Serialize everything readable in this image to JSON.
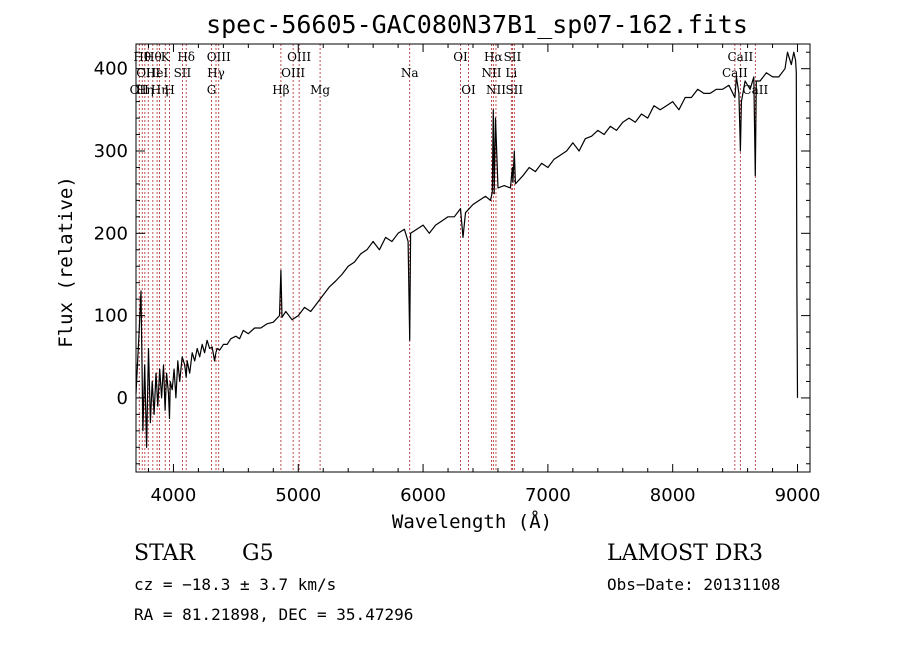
{
  "chart_data": {
    "type": "line",
    "title": "spec-56605-GAC080N37B1_sp07-162.fits",
    "xlabel": "Wavelength (Å)",
    "ylabel": "Flux (relative)",
    "xlim": [
      3700,
      9100
    ],
    "ylim": [
      -90,
      430
    ],
    "xticks": [
      {
        "v": 4000,
        "label": "4000"
      },
      {
        "v": 5000,
        "label": "5000"
      },
      {
        "v": 6000,
        "label": "6000"
      },
      {
        "v": 7000,
        "label": "7000"
      },
      {
        "v": 8000,
        "label": "8000"
      },
      {
        "v": 9000,
        "label": "9000"
      }
    ],
    "yticks": [
      {
        "v": 0,
        "label": "0"
      },
      {
        "v": 100,
        "label": "100"
      },
      {
        "v": 200,
        "label": "200"
      },
      {
        "v": 300,
        "label": "300"
      },
      {
        "v": 400,
        "label": "400"
      }
    ],
    "line_color": "#000000",
    "marker_color": "#b22222",
    "series": [
      {
        "name": "flux",
        "x": [
          3700,
          3725,
          3740,
          3755,
          3770,
          3785,
          3800,
          3815,
          3830,
          3845,
          3860,
          3875,
          3890,
          3905,
          3920,
          3933,
          3945,
          3960,
          3968,
          3975,
          3990,
          4005,
          4020,
          4035,
          4050,
          4070,
          4090,
          4102,
          4110,
          4130,
          4150,
          4170,
          4190,
          4210,
          4230,
          4250,
          4270,
          4290,
          4310,
          4330,
          4340,
          4350,
          4370,
          4400,
          4430,
          4460,
          4500,
          4530,
          4560,
          4600,
          4650,
          4700,
          4750,
          4800,
          4850,
          4861,
          4870,
          4900,
          4950,
          5000,
          5050,
          5100,
          5150,
          5200,
          5250,
          5300,
          5350,
          5400,
          5450,
          5500,
          5550,
          5600,
          5650,
          5700,
          5750,
          5800,
          5850,
          5880,
          5893,
          5900,
          5950,
          6000,
          6050,
          6100,
          6150,
          6200,
          6250,
          6300,
          6320,
          6340,
          6400,
          6450,
          6500,
          6540,
          6555,
          6563,
          6570,
          6580,
          6600,
          6650,
          6700,
          6716,
          6720,
          6731,
          6740,
          6800,
          6850,
          6900,
          6950,
          7000,
          7050,
          7100,
          7150,
          7200,
          7250,
          7300,
          7350,
          7400,
          7450,
          7500,
          7550,
          7600,
          7650,
          7700,
          7750,
          7800,
          7850,
          7900,
          7950,
          8000,
          8050,
          8100,
          8150,
          8200,
          8250,
          8300,
          8350,
          8400,
          8450,
          8498,
          8510,
          8530,
          8542,
          8550,
          8580,
          8620,
          8650,
          8662,
          8670,
          8700,
          8750,
          8800,
          8850,
          8900,
          8920,
          8950,
          8970,
          8985,
          8990,
          8995,
          9000
        ],
        "values": [
          5,
          80,
          130,
          -40,
          40,
          -60,
          60,
          -30,
          20,
          -20,
          30,
          -10,
          35,
          0,
          40,
          -15,
          30,
          5,
          -25,
          20,
          10,
          35,
          0,
          45,
          20,
          50,
          40,
          25,
          45,
          30,
          55,
          45,
          60,
          50,
          65,
          55,
          70,
          60,
          62,
          45,
          55,
          60,
          58,
          65,
          65,
          72,
          75,
          72,
          82,
          78,
          85,
          85,
          90,
          92,
          100,
          155,
          98,
          105,
          95,
          100,
          110,
          105,
          115,
          125,
          135,
          142,
          150,
          160,
          165,
          175,
          180,
          190,
          180,
          195,
          190,
          200,
          205,
          190,
          70,
          200,
          205,
          210,
          200,
          210,
          215,
          220,
          220,
          230,
          195,
          225,
          235,
          240,
          245,
          240,
          250,
          350,
          248,
          340,
          255,
          258,
          255,
          280,
          262,
          300,
          260,
          270,
          280,
          275,
          285,
          280,
          290,
          295,
          300,
          310,
          300,
          315,
          318,
          325,
          320,
          330,
          325,
          335,
          340,
          335,
          345,
          340,
          355,
          350,
          355,
          360,
          350,
          365,
          365,
          375,
          370,
          370,
          375,
          375,
          380,
          365,
          390,
          370,
          300,
          360,
          385,
          375,
          390,
          270,
          385,
          385,
          395,
          390,
          390,
          400,
          420,
          405,
          420,
          410,
          395,
          130,
          0
        ]
      }
    ],
    "line_markers": [
      {
        "x": 3726,
        "labels": [
          {
            "text": "OII",
            "row": 2
          }
        ]
      },
      {
        "x": 3750,
        "labels": [
          {
            "text": "Hθ",
            "row": 0
          }
        ]
      },
      {
        "x": 3771,
        "labels": [
          {
            "text": "Hη",
            "row": 2
          }
        ]
      },
      {
        "x": 3798,
        "labels": [
          {
            "text": "OIII",
            "row": 1
          }
        ]
      },
      {
        "x": 3835,
        "labels": [
          {
            "text": "Hθ",
            "row": 0
          }
        ]
      },
      {
        "x": 3869,
        "labels": [
          {
            "text": "HeI",
            "row": 1
          }
        ]
      },
      {
        "x": 3889,
        "labels": [
          {
            "text": "Hη",
            "row": 2
          }
        ]
      },
      {
        "x": 3934,
        "labels": [
          {
            "text": "K",
            "row": 0
          }
        ]
      },
      {
        "x": 3969,
        "labels": [
          {
            "text": "H",
            "row": 2
          }
        ]
      },
      {
        "x": 4072,
        "labels": [
          {
            "text": "SII",
            "row": 1
          }
        ]
      },
      {
        "x": 4102,
        "labels": [
          {
            "text": "Hδ",
            "row": 0
          }
        ]
      },
      {
        "x": 4305,
        "labels": [
          {
            "text": "G",
            "row": 2
          }
        ]
      },
      {
        "x": 4341,
        "labels": [
          {
            "text": "Hγ",
            "row": 1
          }
        ]
      },
      {
        "x": 4363,
        "labels": [
          {
            "text": "OIII",
            "row": 0
          }
        ]
      },
      {
        "x": 4861,
        "labels": [
          {
            "text": "Hβ",
            "row": 2
          }
        ]
      },
      {
        "x": 4959,
        "labels": [
          {
            "text": "OIII",
            "row": 1
          }
        ]
      },
      {
        "x": 5007,
        "labels": [
          {
            "text": "OIII",
            "row": 0
          }
        ]
      },
      {
        "x": 5175,
        "labels": [
          {
            "text": "Mg",
            "row": 2
          }
        ]
      },
      {
        "x": 5893,
        "labels": [
          {
            "text": "Na",
            "row": 1
          }
        ]
      },
      {
        "x": 6300,
        "labels": [
          {
            "text": "OI",
            "row": 0
          }
        ]
      },
      {
        "x": 6364,
        "labels": [
          {
            "text": "OI",
            "row": 2
          }
        ]
      },
      {
        "x": 6548,
        "labels": [
          {
            "text": "NII",
            "row": 1
          }
        ]
      },
      {
        "x": 6563,
        "labels": [
          {
            "text": "Hα",
            "row": 0
          }
        ]
      },
      {
        "x": 6584,
        "labels": [
          {
            "text": "NII",
            "row": 2
          }
        ]
      },
      {
        "x": 6707,
        "labels": [
          {
            "text": "Li",
            "row": 1
          }
        ]
      },
      {
        "x": 6716,
        "labels": [
          {
            "text": "SII",
            "row": 0
          }
        ]
      },
      {
        "x": 6731,
        "labels": [
          {
            "text": "SII",
            "row": 2
          }
        ]
      },
      {
        "x": 8498,
        "labels": [
          {
            "text": "CaII",
            "row": 1
          }
        ]
      },
      {
        "x": 8542,
        "labels": [
          {
            "text": "CaII",
            "row": 0
          }
        ]
      },
      {
        "x": 8662,
        "labels": [
          {
            "text": "CaII",
            "row": 2
          }
        ]
      }
    ]
  },
  "info": {
    "object_class": "STAR",
    "subclass": "G5",
    "survey": "LAMOST DR3",
    "redshift": "cz = −18.3 ± 3.7 km/s",
    "obs_date": "Obs−Date: 20131108",
    "coords": "RA =  81.21898, DEC =  35.47296"
  }
}
